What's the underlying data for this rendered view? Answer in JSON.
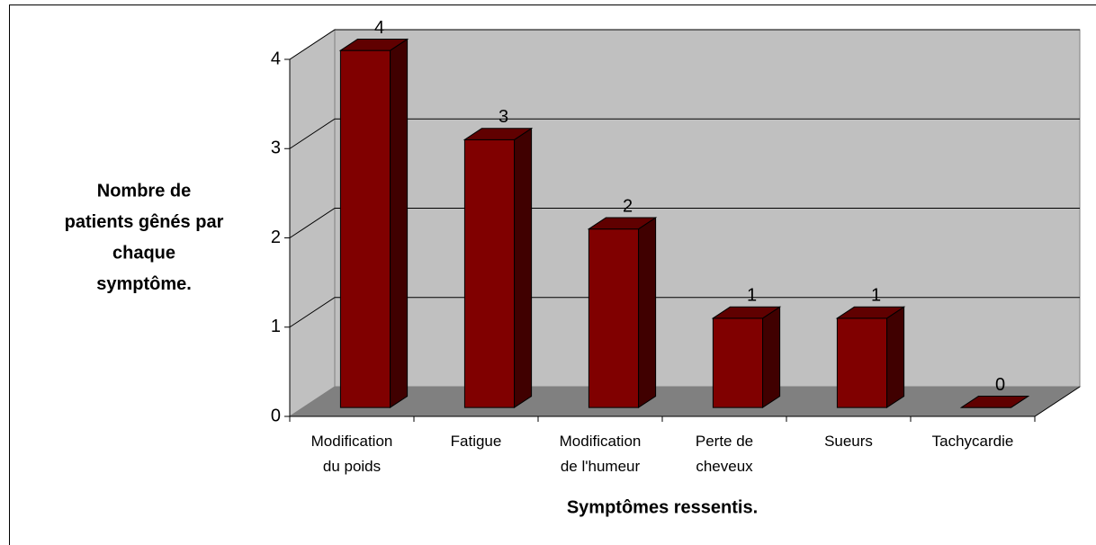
{
  "chart_data": {
    "type": "bar3d",
    "ylabel": [
      "Nombre de",
      "patients gênés par",
      "chaque",
      "symptôme."
    ],
    "xlabel": "Symptômes ressentis.",
    "categories": [
      "Modification du poids",
      "Fatigue",
      "Modification de l'humeur",
      "Perte de cheveux",
      "Sueurs",
      "Tachycardie"
    ],
    "values": [
      4,
      3,
      2,
      1,
      1,
      0
    ],
    "color": "#800000",
    "ylim": [
      0,
      4
    ],
    "yticks": [
      0,
      1,
      2,
      3,
      4
    ],
    "grid": true
  }
}
